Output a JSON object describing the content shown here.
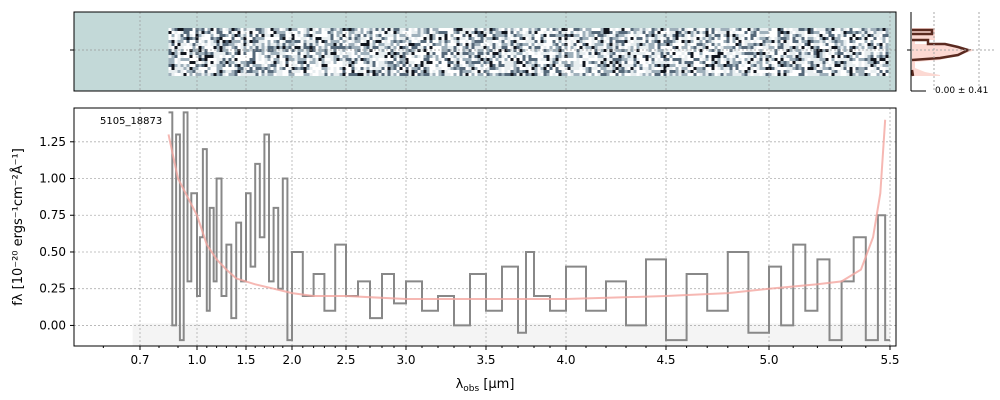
{
  "chart_data": {
    "type": "line",
    "object_label": "5105_18873",
    "xlabel": "λobs [μm]",
    "xlabel_main": "λ",
    "xlabel_sub": "obs",
    "xlabel_unit": " [μm]",
    "ylabel": "fλ [10⁻²⁰ ergs⁻¹cm⁻²Å⁻¹]",
    "xticks": [
      0.7,
      1.0,
      1.5,
      2.0,
      2.5,
      3.0,
      3.5,
      4.0,
      4.5,
      5.0,
      5.5
    ],
    "xtick_labels": [
      "0.7",
      "1.0",
      "1.5",
      "2.0",
      "2.5",
      "3.0",
      "3.5",
      "4.0",
      "4.5",
      "5.0",
      "5.5"
    ],
    "yticks": [
      0.0,
      0.25,
      0.5,
      0.75,
      1.0,
      1.25
    ],
    "ytick_labels": [
      "0.00",
      "0.25",
      "0.50",
      "0.75",
      "1.00",
      "1.25"
    ],
    "ylim": [
      -0.14,
      1.48
    ],
    "xlim": [
      0.52,
      5.52
    ],
    "grid": true,
    "histogram_label": "0.00 ± 0.41",
    "colors": {
      "data": "#888888",
      "model": "#f4a6a0",
      "image_bg": "#c3d9d8",
      "hist_line": "#5a2a20",
      "hist_fill": "#fbd0c8"
    },
    "series": [
      {
        "kind": "data",
        "x": [
          0.85,
          0.87,
          0.89,
          0.91,
          0.93,
          0.95,
          0.97,
          1.0,
          1.03,
          1.06,
          1.1,
          1.13,
          1.17,
          1.2,
          1.25,
          1.3,
          1.35,
          1.4,
          1.45,
          1.5,
          1.55,
          1.6,
          1.65,
          1.7,
          1.75,
          1.8,
          1.85,
          1.9,
          1.95,
          2.0,
          2.1,
          2.2,
          2.3,
          2.4,
          2.5,
          2.6,
          2.7,
          2.8,
          2.9,
          3.0,
          3.1,
          3.2,
          3.3,
          3.4,
          3.5,
          3.6,
          3.7,
          3.75,
          3.8,
          3.9,
          4.0,
          4.1,
          4.2,
          4.3,
          4.4,
          4.5,
          4.6,
          4.7,
          4.8,
          4.9,
          5.0,
          5.05,
          5.1,
          5.15,
          5.2,
          5.25,
          5.3,
          5.35,
          5.4,
          5.45,
          5.48
        ],
        "y": [
          1.45,
          0.0,
          1.3,
          -0.1,
          1.45,
          0.3,
          0.9,
          0.2,
          0.6,
          1.2,
          0.1,
          0.8,
          0.3,
          1.0,
          0.2,
          0.55,
          0.05,
          0.7,
          0.3,
          0.9,
          0.4,
          1.1,
          0.6,
          1.3,
          0.3,
          0.8,
          0.25,
          1.0,
          -0.1,
          0.5,
          0.2,
          0.35,
          0.1,
          0.55,
          0.2,
          0.3,
          0.05,
          0.35,
          0.15,
          0.3,
          0.1,
          0.2,
          0.0,
          0.35,
          0.1,
          0.4,
          -0.05,
          0.5,
          0.2,
          0.1,
          0.4,
          0.1,
          0.3,
          0.0,
          0.45,
          -0.1,
          0.35,
          0.1,
          0.5,
          -0.05,
          0.4,
          0.0,
          0.55,
          0.1,
          0.45,
          -0.1,
          0.3,
          0.6,
          -0.1,
          0.75,
          -0.1
        ]
      },
      {
        "kind": "model",
        "x": [
          0.85,
          0.9,
          1.0,
          1.1,
          1.2,
          1.3,
          1.4,
          1.6,
          1.8,
          2.0,
          2.2,
          2.5,
          3.0,
          3.5,
          4.0,
          4.5,
          4.8,
          5.0,
          5.2,
          5.3,
          5.38,
          5.43,
          5.46,
          5.48
        ],
        "y": [
          1.3,
          1.0,
          0.75,
          0.55,
          0.45,
          0.38,
          0.32,
          0.28,
          0.25,
          0.22,
          0.2,
          0.2,
          0.18,
          0.18,
          0.18,
          0.2,
          0.22,
          0.25,
          0.28,
          0.3,
          0.38,
          0.6,
          0.9,
          1.4
        ]
      }
    ]
  }
}
